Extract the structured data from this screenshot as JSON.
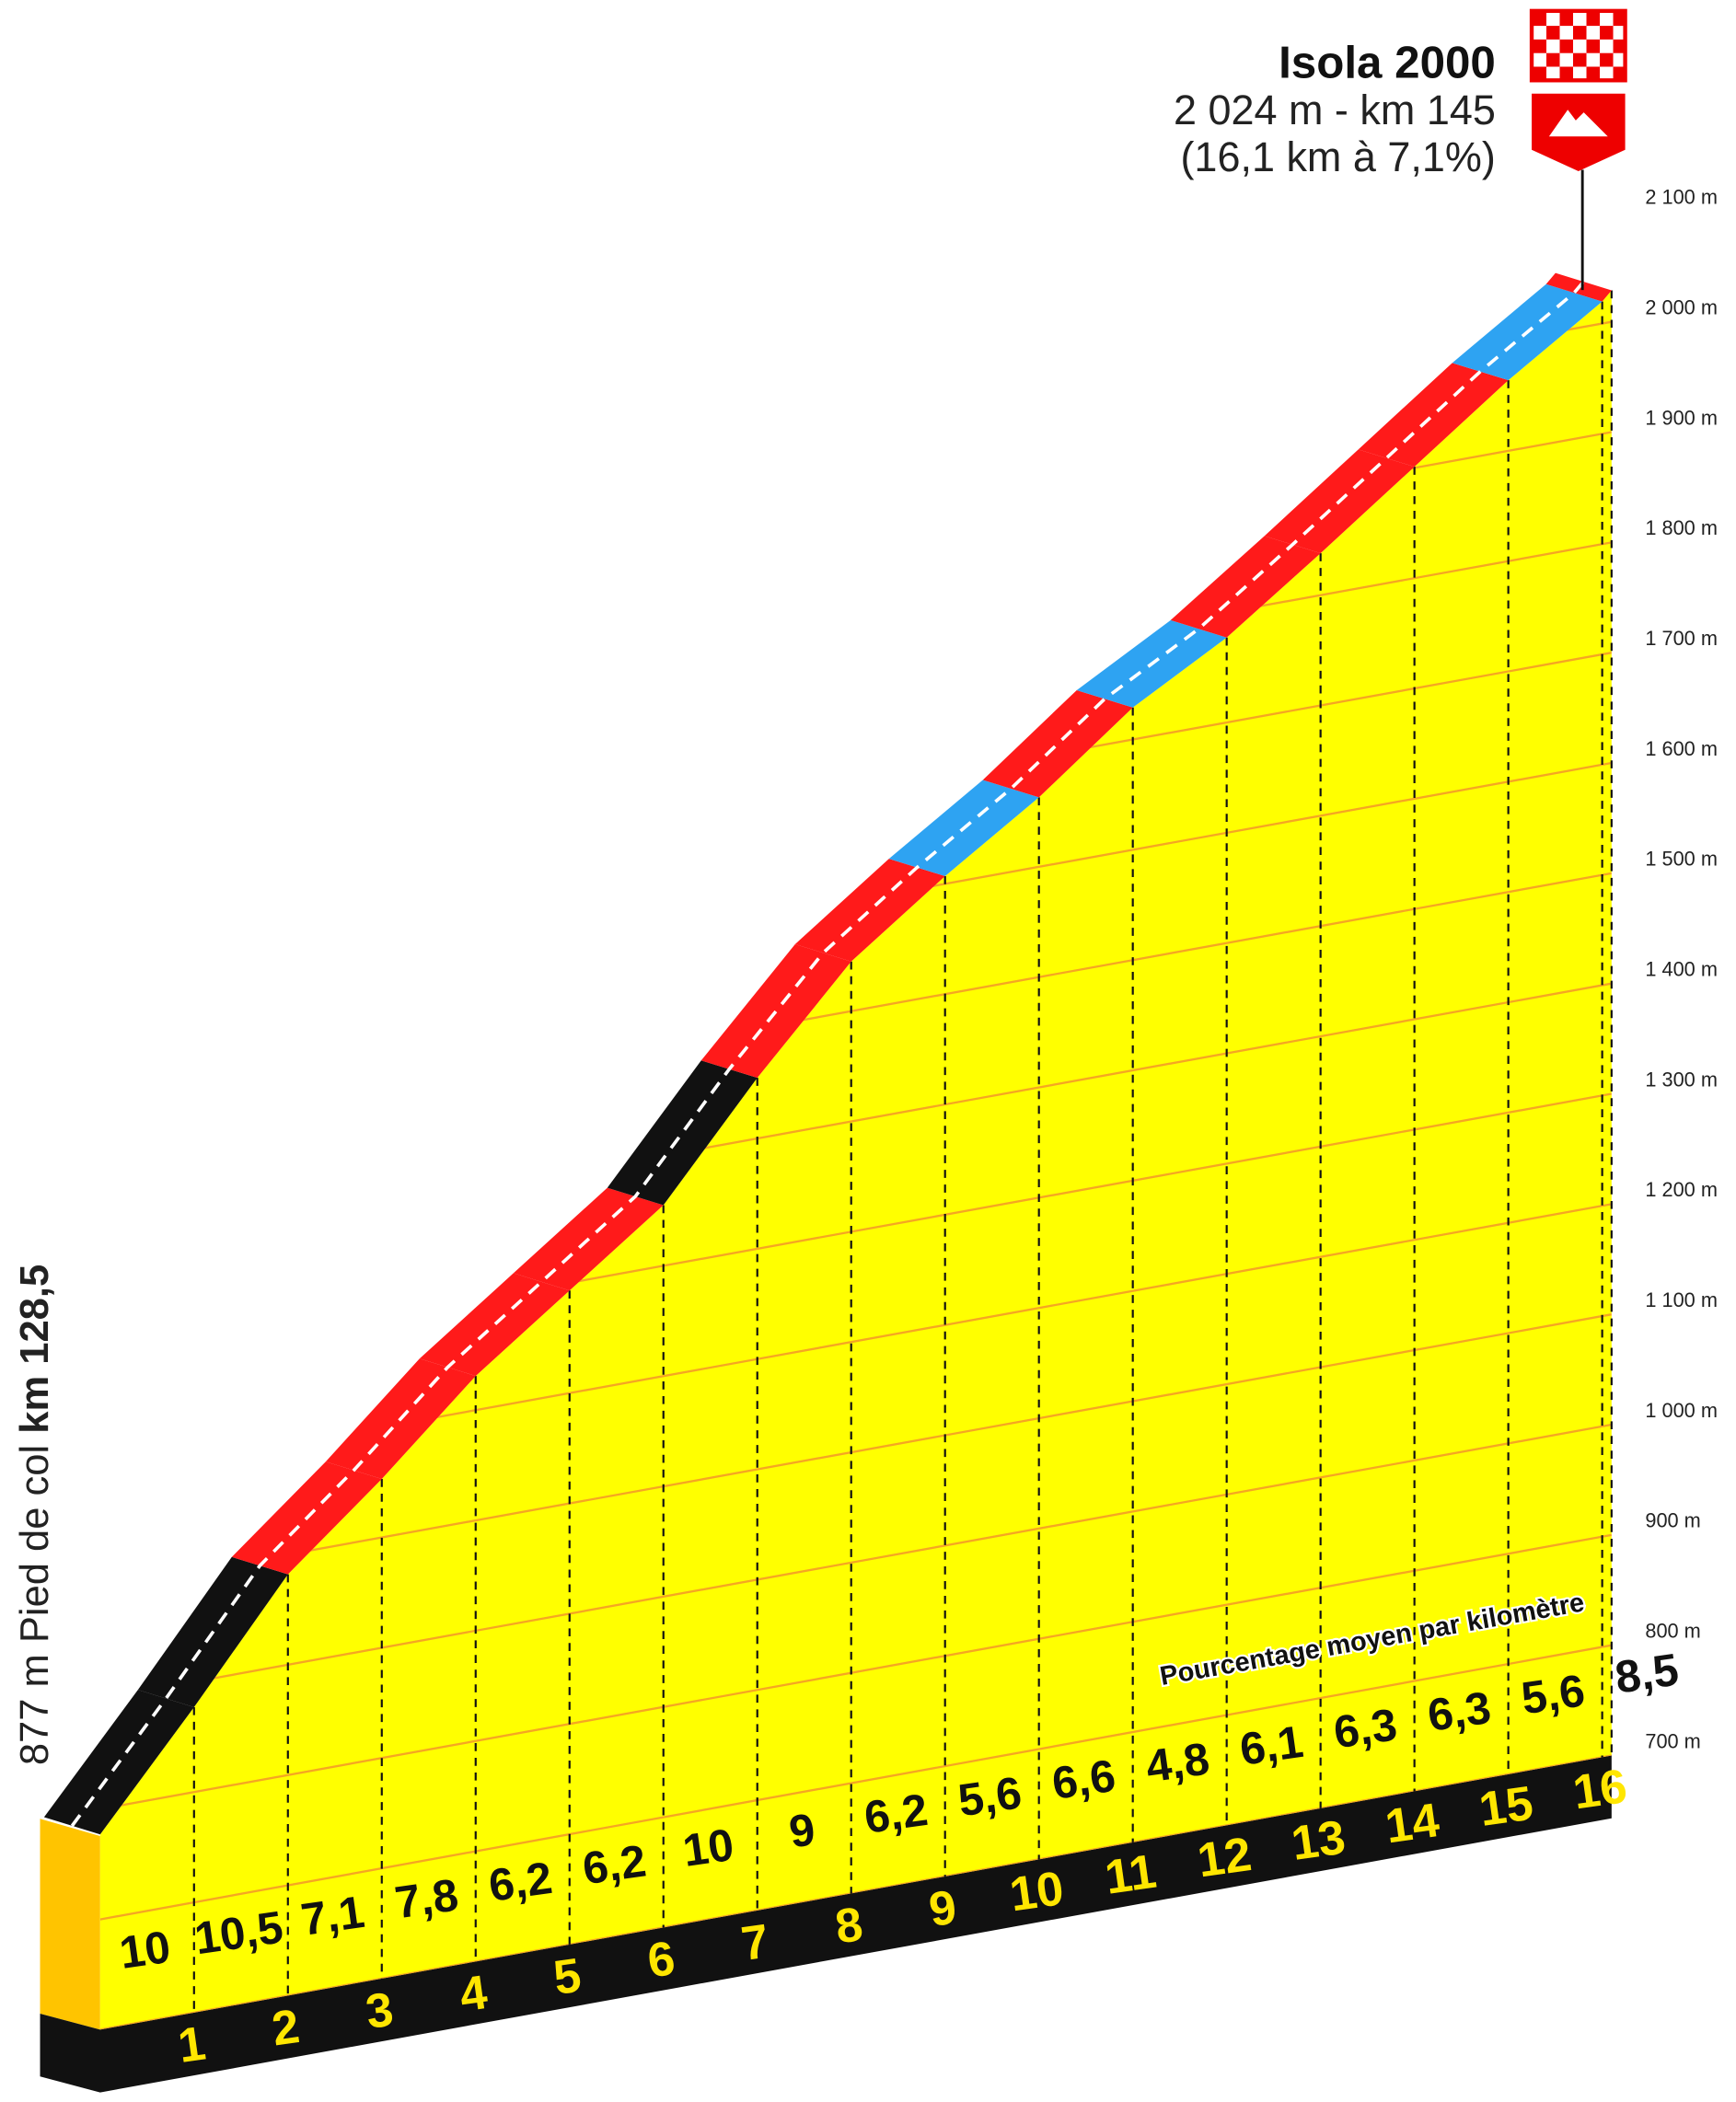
{
  "chart_data": {
    "type": "climb-profile",
    "title": "Isola 2000",
    "subtitle": "2 024 m - km 145",
    "subtitle2": "(16,1 km à 7,1%)",
    "start_label": "877 m Pied de col ",
    "start_km_label": "km 128,5",
    "start_elevation": 877,
    "summit_elevation": 2024,
    "annotation": "Pourcentage moyen par kilomètre",
    "segment_ends": [
      1,
      2,
      3,
      4,
      5,
      6,
      7,
      8,
      9,
      10,
      11,
      12,
      13,
      14,
      15,
      16,
      16.1
    ],
    "values": [
      10,
      10.5,
      7.1,
      7.8,
      6.2,
      6.2,
      10,
      9,
      6.2,
      5.6,
      6.6,
      4.8,
      6.1,
      6.3,
      6.3,
      5.6,
      8.5
    ],
    "value_labels": [
      "10",
      "10,5",
      "7,1",
      "7,8",
      "6,2",
      "6,2",
      "10",
      "9",
      "6,2",
      "5,6",
      "6,6",
      "4,8",
      "6,1",
      "6,3",
      "6,3",
      "5,6",
      "8,5"
    ],
    "colors": [
      "#111111",
      "#111111",
      "#ff1a1a",
      "#ff1a1a",
      "#ff1a1a",
      "#ff1a1a",
      "#111111",
      "#ff1a1a",
      "#ff1a1a",
      "#2ea3f2",
      "#ff1a1a",
      "#2ea3f2",
      "#ff1a1a",
      "#ff1a1a",
      "#ff1a1a",
      "#2ea3f2",
      "#ff1a1a"
    ],
    "xlim": [
      0,
      16.1
    ],
    "ylim": [
      700,
      2100
    ],
    "yticks": [
      {
        "value": 700,
        "label": "700 m"
      },
      {
        "value": 800,
        "label": "800 m"
      },
      {
        "value": 900,
        "label": "900 m"
      },
      {
        "value": 1000,
        "label": "1 000 m"
      },
      {
        "value": 1100,
        "label": "1 100 m"
      },
      {
        "value": 1200,
        "label": "1 200 m"
      },
      {
        "value": 1300,
        "label": "1 300 m"
      },
      {
        "value": 1400,
        "label": "1 400 m"
      },
      {
        "value": 1500,
        "label": "1 500 m"
      },
      {
        "value": 1600,
        "label": "1 600 m"
      },
      {
        "value": 1700,
        "label": "1 700 m"
      },
      {
        "value": 1800,
        "label": "1 800 m"
      },
      {
        "value": 1900,
        "label": "1 900 m"
      },
      {
        "value": 2000,
        "label": "2 000 m"
      },
      {
        "value": 2100,
        "label": "2 100 m"
      }
    ],
    "grid": true
  }
}
